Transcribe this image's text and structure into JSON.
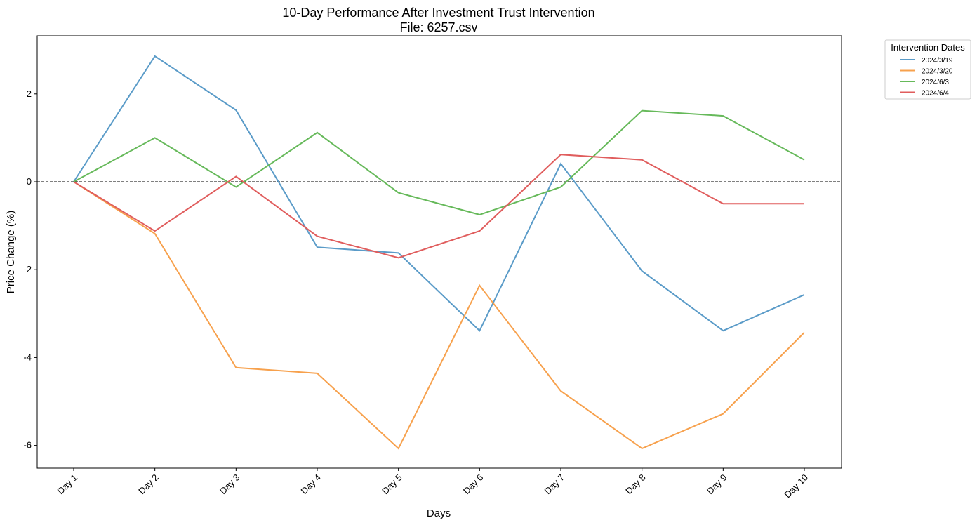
{
  "chart_data": {
    "type": "line",
    "title": "10-Day Performance After Investment Trust Intervention",
    "subtitle": "File: 6257.csv",
    "xlabel": "Days",
    "ylabel": "Price Change (%)",
    "categories": [
      "Day 1",
      "Day 2",
      "Day 3",
      "Day 4",
      "Day 5",
      "Day 6",
      "Day 7",
      "Day 8",
      "Day 9",
      "Day 10"
    ],
    "ylim": [
      -6.5,
      3.3
    ],
    "yticks": [
      2,
      0,
      -2,
      -4,
      -6
    ],
    "ytick_labels": [
      "2",
      "0",
      "-2",
      "-4",
      "-6"
    ],
    "reference_line": 0,
    "grid": false,
    "legend_title": "Intervention Dates",
    "legend_position": "outside-top-right",
    "series": [
      {
        "name": "2024/3/19",
        "color": "#5a9bc8",
        "values": [
          0,
          2.86,
          1.63,
          -1.49,
          -1.62,
          -3.39,
          0.41,
          -2.03,
          -3.39,
          -2.57
        ]
      },
      {
        "name": "2024/3/20",
        "color": "#f7a14d",
        "values": [
          0,
          -1.18,
          -4.23,
          -4.36,
          -6.07,
          -2.36,
          -4.76,
          -6.07,
          -5.28,
          -3.43
        ]
      },
      {
        "name": "2024/6/3",
        "color": "#66b95a",
        "values": [
          0,
          1.0,
          -0.12,
          1.12,
          -0.25,
          -0.75,
          -0.12,
          1.62,
          1.5,
          0.5
        ]
      },
      {
        "name": "2024/6/4",
        "color": "#e05d5d",
        "values": [
          0,
          -1.12,
          0.12,
          -1.24,
          -1.73,
          -1.12,
          0.62,
          0.5,
          -0.5,
          -0.5
        ]
      }
    ]
  }
}
